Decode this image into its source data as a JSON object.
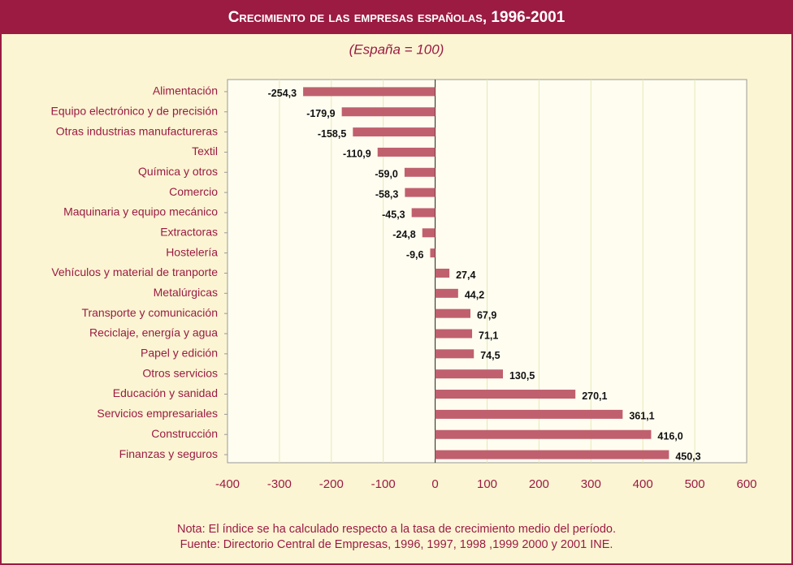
{
  "chart_data": {
    "type": "hbar",
    "title": "Crecimiento de las empresas españolas, 1996-2001",
    "subtitle": "(España = 100)",
    "categories": [
      "Alimentación",
      "Equipo electrónico y de precisión",
      "Otras industrias manufactureras",
      "Textil",
      "Química y otros",
      "Comercio",
      "Maquinaria y equipo mecánico",
      "Extractoras",
      "Hostelería",
      "Vehículos y material de tranporte",
      "Metalúrgicas",
      "Transporte y comunicación",
      "Reciclaje, energía y agua",
      "Papel y edición",
      "Otros servicios",
      "Educación y sanidad",
      "Servicios empresariales",
      "Construcción",
      "Finanzas y seguros"
    ],
    "values": [
      -254.3,
      -179.9,
      -158.5,
      -110.9,
      -59.0,
      -58.3,
      -45.3,
      -24.8,
      -9.6,
      27.4,
      44.2,
      67.9,
      71.1,
      74.5,
      130.5,
      270.1,
      361.1,
      416.0,
      450.3
    ],
    "value_labels": [
      "-254,3",
      "-179,9",
      "-158,5",
      "-110,9",
      "-59,0",
      "-58,3",
      "-45,3",
      "-24,8",
      "-9,6",
      "27,4",
      "44,2",
      "67,9",
      "71,1",
      "74,5",
      "130,5",
      "270,1",
      "361,1",
      "416,0",
      "450,3"
    ],
    "color": "#c0606e",
    "xlim": [
      -400,
      600
    ],
    "xticks": [
      -400,
      -300,
      -200,
      -100,
      0,
      100,
      200,
      300,
      400,
      500,
      600
    ],
    "grid": true,
    "notes": [
      "Nota: El índice se ha calculado respecto a la tasa de crecimiento medio del período.",
      "Fuente: Directorio Central de Empresas, 1996, 1997, 1998 ,1999  2000 y 2001 INE."
    ]
  }
}
